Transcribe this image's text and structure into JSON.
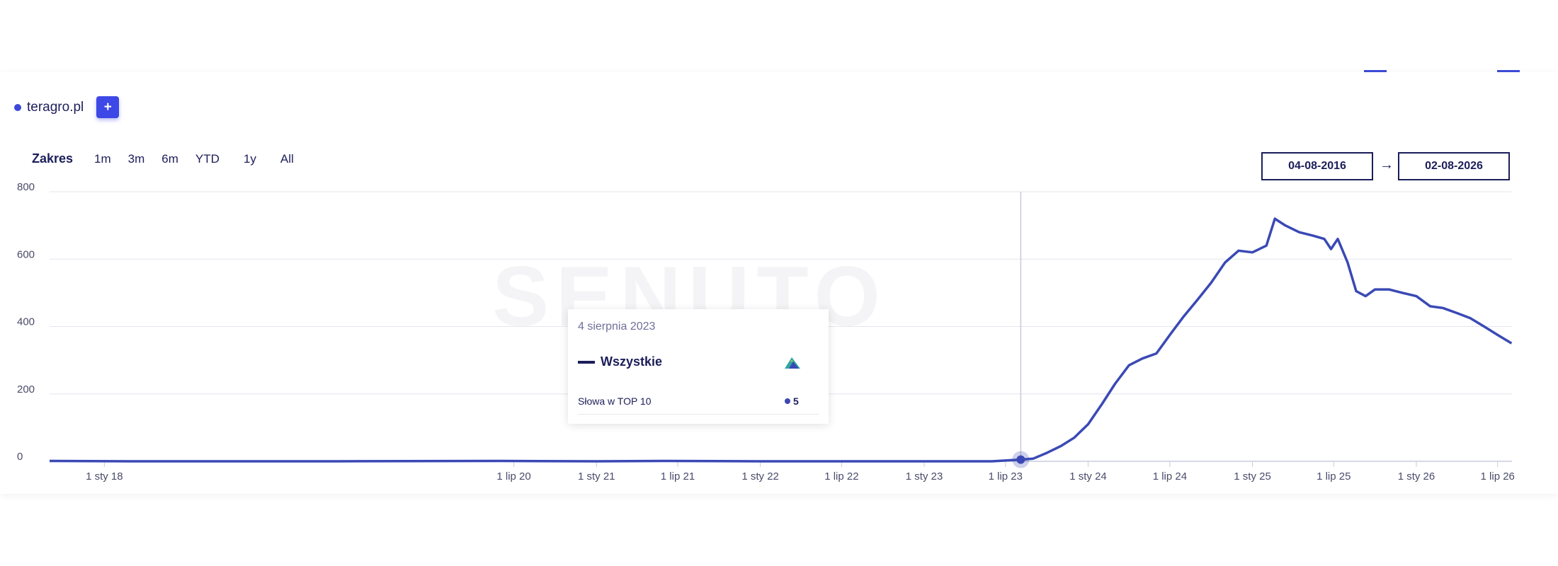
{
  "legend": {
    "site": "teragro.pl",
    "add_label": "+"
  },
  "range": {
    "label": "Zakres",
    "options": [
      "1m",
      "3m",
      "6m",
      "YTD",
      "1y",
      "All"
    ]
  },
  "dates": {
    "from": "04-08-2016",
    "arrow": "→",
    "to": "02-08-2026"
  },
  "watermark": "SENUTO",
  "tooltip": {
    "date": "4 sierpnia 2023",
    "series": "Wszystkie",
    "metric": "Słowa w TOP 10",
    "value": "5"
  },
  "colors": {
    "line": "#3a49b5",
    "accent": "#3d48e6",
    "text": "#1c1e5a"
  },
  "chart_data": {
    "type": "line",
    "title": "",
    "xlabel": "",
    "ylabel": "",
    "ylim": [
      0,
      800
    ],
    "yticks": [
      0,
      200,
      400,
      600,
      800
    ],
    "grid": true,
    "legend": "top-left",
    "xlim": [
      "2017-09-01",
      "2026-08-02"
    ],
    "xticks": [
      {
        "date": "2018-01-01",
        "label": "1 sty 18"
      },
      {
        "date": "2020-07-01",
        "label": "1 lip 20"
      },
      {
        "date": "2021-01-01",
        "label": "1 sty 21"
      },
      {
        "date": "2021-07-01",
        "label": "1 lip 21"
      },
      {
        "date": "2022-01-01",
        "label": "1 sty 22"
      },
      {
        "date": "2022-07-01",
        "label": "1 lip 22"
      },
      {
        "date": "2023-01-01",
        "label": "1 sty 23"
      },
      {
        "date": "2023-07-01",
        "label": "1 lip 23"
      },
      {
        "date": "2024-01-01",
        "label": "1 sty 24"
      },
      {
        "date": "2024-07-01",
        "label": "1 lip 24"
      },
      {
        "date": "2025-01-01",
        "label": "1 sty 25"
      },
      {
        "date": "2025-07-01",
        "label": "1 lip 25"
      },
      {
        "date": "2026-01-01",
        "label": "1 sty 26"
      },
      {
        "date": "2026-07-01",
        "label": "1 lip 26"
      }
    ],
    "highlight": {
      "date": "2023-08-04",
      "y": 5
    },
    "series": [
      {
        "name": "teragro.pl",
        "points": [
          [
            "2017-09-01",
            1
          ],
          [
            "2018-03-01",
            0
          ],
          [
            "2019-06-01",
            0
          ],
          [
            "2020-06-01",
            1
          ],
          [
            "2021-01-01",
            0
          ],
          [
            "2021-06-01",
            1
          ],
          [
            "2022-01-01",
            0
          ],
          [
            "2022-08-01",
            0
          ],
          [
            "2023-01-01",
            0
          ],
          [
            "2023-06-01",
            0
          ],
          [
            "2023-08-04",
            5
          ],
          [
            "2023-09-01",
            8
          ],
          [
            "2023-10-01",
            25
          ],
          [
            "2023-11-01",
            45
          ],
          [
            "2023-12-01",
            70
          ],
          [
            "2024-01-01",
            110
          ],
          [
            "2024-02-01",
            170
          ],
          [
            "2024-03-01",
            230
          ],
          [
            "2024-04-01",
            285
          ],
          [
            "2024-05-01",
            305
          ],
          [
            "2024-06-01",
            320
          ],
          [
            "2024-07-01",
            375
          ],
          [
            "2024-08-01",
            430
          ],
          [
            "2024-09-01",
            480
          ],
          [
            "2024-10-01",
            530
          ],
          [
            "2024-11-01",
            590
          ],
          [
            "2024-12-01",
            625
          ],
          [
            "2025-01-01",
            620
          ],
          [
            "2025-02-01",
            640
          ],
          [
            "2025-02-20",
            720
          ],
          [
            "2025-03-15",
            700
          ],
          [
            "2025-04-15",
            680
          ],
          [
            "2025-05-15",
            670
          ],
          [
            "2025-06-10",
            660
          ],
          [
            "2025-06-25",
            630
          ],
          [
            "2025-07-10",
            660
          ],
          [
            "2025-08-01",
            590
          ],
          [
            "2025-08-20",
            505
          ],
          [
            "2025-09-10",
            490
          ],
          [
            "2025-10-01",
            510
          ],
          [
            "2025-11-01",
            510
          ],
          [
            "2025-12-01",
            500
          ],
          [
            "2026-01-01",
            490
          ],
          [
            "2026-02-01",
            460
          ],
          [
            "2026-03-01",
            455
          ],
          [
            "2026-04-01",
            440
          ],
          [
            "2026-05-01",
            425
          ],
          [
            "2026-06-01",
            400
          ],
          [
            "2026-07-01",
            375
          ],
          [
            "2026-08-01",
            350
          ]
        ]
      }
    ]
  }
}
